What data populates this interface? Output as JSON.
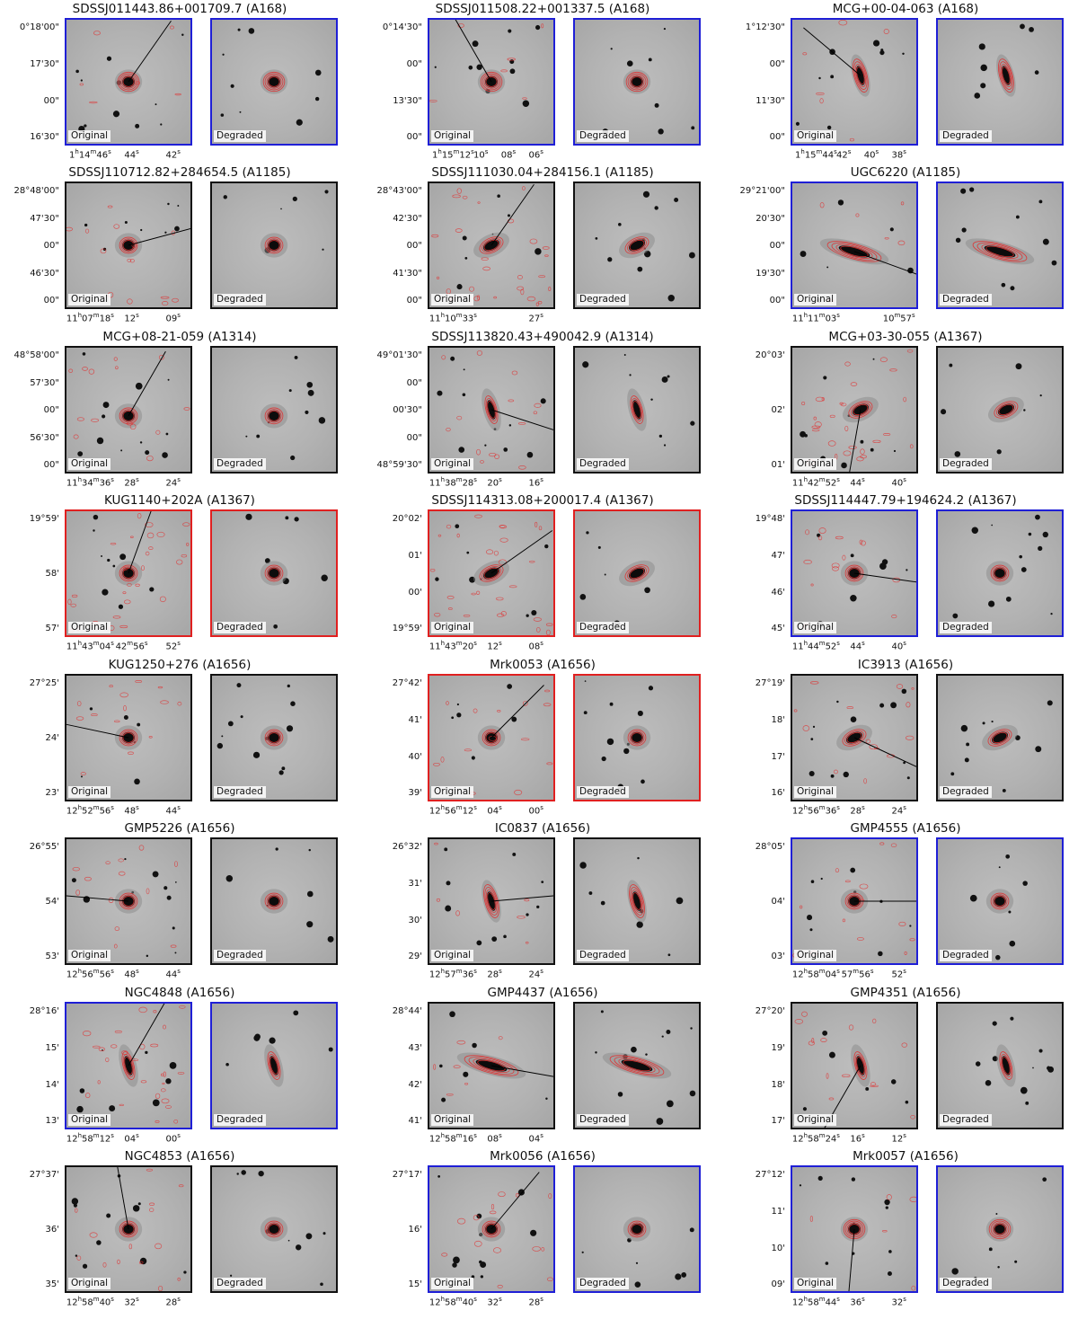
{
  "border_colors": {
    "blue": "#1f1fd6",
    "black": "#111111",
    "red": "#e02020"
  },
  "panel_labels": {
    "original": "Original",
    "degraded": "Degraded"
  },
  "cells": [
    {
      "title": "SDSSJ011443.86+001709.7 (A168)",
      "border": "blue",
      "y_ticks": [
        "0°18'00\"",
        "17'30\"",
        "00\"",
        "16'30\""
      ],
      "x_ticks": [
        "1h14m46s",
        "44s",
        "42s"
      ],
      "galaxy": {
        "x": 0.5,
        "y": 0.5,
        "shape": "round"
      },
      "line_angle": -55,
      "contours": "compact"
    },
    {
      "title": "SDSSJ011508.22+001337.5 (A168)",
      "border": "blue",
      "y_ticks": [
        "0°14'30\"",
        "00\"",
        "13'30\"",
        "00\""
      ],
      "x_ticks": [
        "1h15m12s",
        "10s",
        "08s",
        "06s"
      ],
      "galaxy": {
        "x": 0.5,
        "y": 0.5,
        "shape": "round"
      },
      "line_angle": -120,
      "contours": "compact"
    },
    {
      "title": "MCG+00-04-063 (A168)",
      "border": "blue",
      "y_ticks": [
        "1°12'30\"",
        "00\"",
        "11'30\"",
        "00\""
      ],
      "x_ticks": [
        "1h15m44s",
        "42s",
        "40s",
        "38s"
      ],
      "galaxy": {
        "x": 0.55,
        "y": 0.45,
        "shape": "tall"
      },
      "line_angle": -140,
      "contours": "compact"
    },
    {
      "title": "SDSSJ110712.82+284654.5 (A1185)",
      "border": "black",
      "y_ticks": [
        "28°48'00\"",
        "47'30\"",
        "00\"",
        "46'30\"",
        "00\""
      ],
      "x_ticks": [
        "11h07m18s",
        "12s",
        "09s"
      ],
      "galaxy": {
        "x": 0.5,
        "y": 0.5,
        "shape": "round"
      },
      "line_angle": -15,
      "contours": "sparse"
    },
    {
      "title": "SDSSJ111030.04+284156.1 (A1185)",
      "border": "black",
      "y_ticks": [
        "28°43'00\"",
        "42'30\"",
        "00\"",
        "41'30\"",
        "00\""
      ],
      "x_ticks": [
        "11h10m33s",
        "27s"
      ],
      "galaxy": {
        "x": 0.5,
        "y": 0.5,
        "shape": "oval"
      },
      "line_angle": -55,
      "contours": "spread"
    },
    {
      "title": "UGC6220 (A1185)",
      "border": "blue",
      "y_ticks": [
        "29°21'00\"",
        "20'30\"",
        "00\"",
        "19'30\"",
        "00\""
      ],
      "x_ticks": [
        "11h11m03s",
        "10m57s"
      ],
      "galaxy": {
        "x": 0.5,
        "y": 0.55,
        "shape": "edge"
      },
      "line_angle": 20,
      "contours": "compact"
    },
    {
      "title": "MCG+08-21-059 (A1314)",
      "border": "black",
      "y_ticks": [
        "48°58'00\"",
        "57'30\"",
        "00\"",
        "56'30\"",
        "00\""
      ],
      "x_ticks": [
        "11h34m36s",
        "28s",
        "24s"
      ],
      "galaxy": {
        "x": 0.5,
        "y": 0.55,
        "shape": "round"
      },
      "line_angle": -60,
      "contours": "sparse"
    },
    {
      "title": "SDSSJ113820.43+490042.9 (A1314)",
      "border": "black",
      "y_ticks": [
        "49°01'30\"",
        "00\"",
        "00'30\"",
        "00\"",
        "48°59'30\""
      ],
      "x_ticks": [
        "11h38m28s",
        "20s",
        "16s"
      ],
      "galaxy": {
        "x": 0.5,
        "y": 0.5,
        "shape": "tall"
      },
      "line_angle": 18,
      "contours": "sparse"
    },
    {
      "title": "MCG+03-30-055 (A1367)",
      "border": "black",
      "y_ticks": [
        "20°03'",
        "02'",
        "01'"
      ],
      "x_ticks": [
        "11h42m52s",
        "44s",
        "40s"
      ],
      "galaxy": {
        "x": 0.55,
        "y": 0.5,
        "shape": "oval"
      },
      "line_angle": 100,
      "contours": "spread"
    },
    {
      "title": "KUG1140+202A (A1367)",
      "border": "red",
      "y_ticks": [
        "19°59'",
        "58'",
        "57'"
      ],
      "x_ticks": [
        "11h43m04s",
        "42m56s",
        "52s"
      ],
      "galaxy": {
        "x": 0.5,
        "y": 0.5,
        "shape": "round"
      },
      "line_angle": -70,
      "contours": "spread"
    },
    {
      "title": "SDSSJ114313.08+200017.4 (A1367)",
      "border": "red",
      "y_ticks": [
        "20°02'",
        "01'",
        "00'",
        "19°59'"
      ],
      "x_ticks": [
        "11h43m20s",
        "12s",
        "08s"
      ],
      "galaxy": {
        "x": 0.5,
        "y": 0.5,
        "shape": "oval"
      },
      "line_angle": -35,
      "contours": "spread"
    },
    {
      "title": "SDSSJ114447.79+194624.2 (A1367)",
      "border": "blue",
      "y_ticks": [
        "19°48'",
        "47'",
        "46'",
        "45'"
      ],
      "x_ticks": [
        "11h44m52s",
        "44s",
        "40s"
      ],
      "galaxy": {
        "x": 0.5,
        "y": 0.5,
        "shape": "round"
      },
      "line_angle": 8,
      "contours": "sparse"
    },
    {
      "title": "KUG1250+276 (A1656)",
      "border": "black",
      "y_ticks": [
        "27°25'",
        "24'",
        "23'"
      ],
      "x_ticks": [
        "12h52m56s",
        "48s",
        "44s"
      ],
      "galaxy": {
        "x": 0.5,
        "y": 0.5,
        "shape": "round"
      },
      "line_angle": 192,
      "contours": "sparse"
    },
    {
      "title": "Mrk0053 (A1656)",
      "border": "red",
      "y_ticks": [
        "27°42'",
        "41'",
        "40'",
        "39'"
      ],
      "x_ticks": [
        "12h56m12s",
        "04s",
        "00s"
      ],
      "galaxy": {
        "x": 0.5,
        "y": 0.5,
        "shape": "round"
      },
      "line_angle": -45,
      "contours": "sparse"
    },
    {
      "title": "IC3913 (A1656)",
      "border": "black",
      "y_ticks": [
        "27°19'",
        "18'",
        "17'",
        "16'"
      ],
      "x_ticks": [
        "12h56m36s",
        "28s",
        "24s"
      ],
      "galaxy": {
        "x": 0.5,
        "y": 0.5,
        "shape": "oval"
      },
      "line_angle": 25,
      "contours": "sparse"
    },
    {
      "title": "GMP5226 (A1656)",
      "border": "black",
      "y_ticks": [
        "26°55'",
        "54'",
        "53'"
      ],
      "x_ticks": [
        "12h56m56s",
        "48s",
        "44s"
      ],
      "galaxy": {
        "x": 0.5,
        "y": 0.5,
        "shape": "round"
      },
      "line_angle": 185,
      "contours": "sparse"
    },
    {
      "title": "IC0837 (A1656)",
      "border": "black",
      "y_ticks": [
        "26°32'",
        "31'",
        "30'",
        "29'"
      ],
      "x_ticks": [
        "12h57m36s",
        "28s",
        "24s"
      ],
      "galaxy": {
        "x": 0.5,
        "y": 0.5,
        "shape": "tall"
      },
      "line_angle": -5,
      "contours": "compact"
    },
    {
      "title": "GMP4555 (A1656)",
      "border": "blue",
      "y_ticks": [
        "28°05'",
        "04'",
        "03'"
      ],
      "x_ticks": [
        "12h58m04s",
        "57m56s",
        "52s"
      ],
      "galaxy": {
        "x": 0.5,
        "y": 0.5,
        "shape": "round"
      },
      "line_angle": 0,
      "contours": "sparse"
    },
    {
      "title": "NGC4848 (A1656)",
      "border": "blue",
      "y_ticks": [
        "28°16'",
        "15'",
        "14'",
        "13'"
      ],
      "x_ticks": [
        "12h58m12s",
        "04s",
        "00s"
      ],
      "galaxy": {
        "x": 0.5,
        "y": 0.5,
        "shape": "tall"
      },
      "line_angle": -60,
      "contours": "spread"
    },
    {
      "title": "GMP4437 (A1656)",
      "border": "black",
      "y_ticks": [
        "28°44'",
        "43'",
        "42'",
        "41'"
      ],
      "x_ticks": [
        "12h58m16s",
        "08s",
        "04s"
      ],
      "galaxy": {
        "x": 0.5,
        "y": 0.5,
        "shape": "edge"
      },
      "line_angle": 10,
      "contours": "compact"
    },
    {
      "title": "GMP4351 (A1656)",
      "border": "black",
      "y_ticks": [
        "27°20'",
        "19'",
        "18'",
        "17'"
      ],
      "x_ticks": [
        "12h58m24s",
        "16s",
        "12s"
      ],
      "galaxy": {
        "x": 0.55,
        "y": 0.5,
        "shape": "tall"
      },
      "line_angle": 120,
      "contours": "sparse"
    },
    {
      "title": "NGC4853 (A1656)",
      "border": "black",
      "y_ticks": [
        "27°37'",
        "36'",
        "35'"
      ],
      "x_ticks": [
        "12h58m40s",
        "32s",
        "28s"
      ],
      "galaxy": {
        "x": 0.5,
        "y": 0.5,
        "shape": "round"
      },
      "line_angle": -100,
      "contours": "sparse"
    },
    {
      "title": "Mrk0056 (A1656)",
      "border": "blue",
      "y_ticks": [
        "27°17'",
        "16'",
        "15'"
      ],
      "x_ticks": [
        "12h58m40s",
        "32s",
        "28s"
      ],
      "galaxy": {
        "x": 0.5,
        "y": 0.5,
        "shape": "round"
      },
      "line_angle": -50,
      "contours": "sparse"
    },
    {
      "title": "Mrk0057 (A1656)",
      "border": "blue",
      "y_ticks": [
        "27°12'",
        "11'",
        "10'",
        "09'"
      ],
      "x_ticks": [
        "12h58m44s",
        "36s",
        "32s"
      ],
      "galaxy": {
        "x": 0.5,
        "y": 0.5,
        "shape": "round"
      },
      "line_angle": 95,
      "contours": "compact"
    }
  ]
}
